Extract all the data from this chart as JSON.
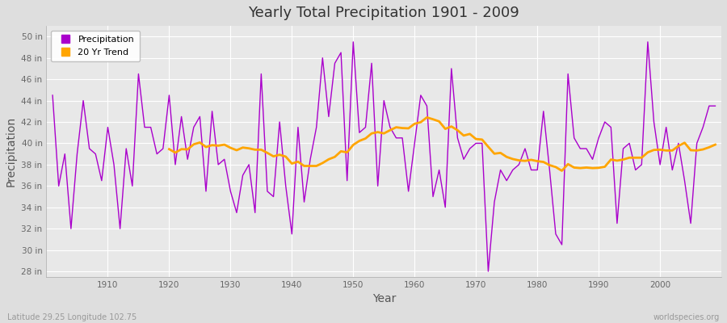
{
  "title": "Yearly Total Precipitation 1901 - 2009",
  "xlabel": "Year",
  "ylabel": "Precipitation",
  "subtitle_left": "Latitude 29.25 Longitude 102.75",
  "subtitle_right": "worldspecies.org",
  "legend_labels": [
    "Precipitation",
    "20 Yr Trend"
  ],
  "precip_color": "#AA00CC",
  "trend_color": "#FFA500",
  "fig_bg_color": "#DEDEDE",
  "plot_bg_color": "#E8E8E8",
  "grid_color": "#FFFFFF",
  "ylim": [
    27.5,
    51
  ],
  "yticks": [
    28,
    30,
    32,
    34,
    36,
    38,
    40,
    42,
    44,
    46,
    48,
    50
  ],
  "xlim": [
    1900,
    2010
  ],
  "xticks": [
    1910,
    1920,
    1930,
    1940,
    1950,
    1960,
    1970,
    1980,
    1990,
    2000
  ],
  "years": [
    1901,
    1902,
    1903,
    1904,
    1905,
    1906,
    1907,
    1908,
    1909,
    1910,
    1911,
    1912,
    1913,
    1914,
    1915,
    1916,
    1917,
    1918,
    1919,
    1920,
    1921,
    1922,
    1923,
    1924,
    1925,
    1926,
    1927,
    1928,
    1929,
    1930,
    1931,
    1932,
    1933,
    1934,
    1935,
    1936,
    1937,
    1938,
    1939,
    1940,
    1941,
    1942,
    1943,
    1944,
    1945,
    1946,
    1947,
    1948,
    1949,
    1950,
    1951,
    1952,
    1953,
    1954,
    1955,
    1956,
    1957,
    1958,
    1959,
    1960,
    1961,
    1962,
    1963,
    1964,
    1965,
    1966,
    1967,
    1968,
    1969,
    1970,
    1971,
    1972,
    1973,
    1974,
    1975,
    1976,
    1977,
    1978,
    1979,
    1980,
    1981,
    1982,
    1983,
    1984,
    1985,
    1986,
    1987,
    1988,
    1989,
    1990,
    1991,
    1992,
    1993,
    1994,
    1995,
    1996,
    1997,
    1998,
    1999,
    2000,
    2001,
    2002,
    2003,
    2004,
    2005,
    2006,
    2007,
    2008,
    2009
  ],
  "precip": [
    44.5,
    36.0,
    39.0,
    32.0,
    39.0,
    44.0,
    39.5,
    39.0,
    36.5,
    41.5,
    38.0,
    32.0,
    39.5,
    36.0,
    46.5,
    41.5,
    41.5,
    39.0,
    39.5,
    44.5,
    38.0,
    42.5,
    38.5,
    41.5,
    42.5,
    35.5,
    43.0,
    38.0,
    38.5,
    35.5,
    33.5,
    37.0,
    38.0,
    33.5,
    46.5,
    35.5,
    35.0,
    42.0,
    36.0,
    31.5,
    41.5,
    34.5,
    38.5,
    41.5,
    48.0,
    42.5,
    47.5,
    48.5,
    36.5,
    49.5,
    41.0,
    41.5,
    47.5,
    36.0,
    44.0,
    41.5,
    40.5,
    40.5,
    35.5,
    40.0,
    44.5,
    43.5,
    35.0,
    37.5,
    34.0,
    47.0,
    40.5,
    38.5,
    39.5,
    40.0,
    40.0,
    28.0,
    34.5,
    37.5,
    36.5,
    37.5,
    38.0,
    39.5,
    37.5,
    37.5,
    43.0,
    37.5,
    31.5,
    30.5,
    46.5,
    40.5,
    39.5,
    39.5,
    38.5,
    40.5,
    42.0,
    41.5,
    32.5,
    39.5,
    40.0,
    37.5,
    38.0,
    49.5,
    42.0,
    38.0,
    41.5,
    37.5,
    40.0,
    36.5,
    32.5,
    40.0,
    41.5,
    43.5,
    43.5
  ]
}
